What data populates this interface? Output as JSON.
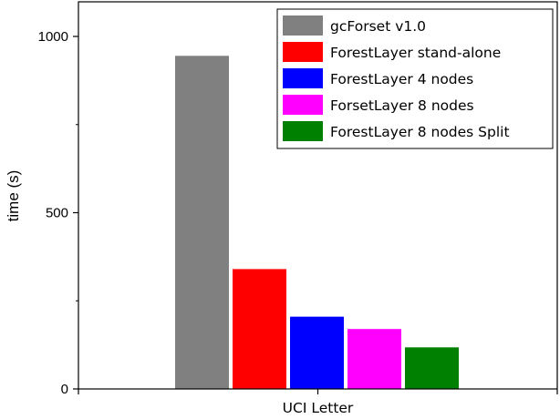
{
  "chart_data": {
    "type": "bar",
    "categories": [
      "UCI Letter"
    ],
    "series": [
      {
        "name": "gcForset v1.0",
        "color": "#808080",
        "values": [
          945
        ]
      },
      {
        "name": "ForestLayer stand-alone",
        "color": "#ff0000",
        "values": [
          340
        ]
      },
      {
        "name": "ForestLayer 4 nodes",
        "color": "#0000ff",
        "values": [
          205
        ]
      },
      {
        "name": "ForsetLayer 8 nodes",
        "color": "#ff00ff",
        "values": [
          170
        ]
      },
      {
        "name": "ForestLayer 8 nodes Split",
        "color": "#008000",
        "values": [
          118
        ]
      }
    ],
    "xlabel": "",
    "ylabel": "time (s)",
    "ylim": [
      0,
      1100
    ],
    "yticks": [
      0,
      500,
      1000
    ],
    "ytick_labels": [
      "0",
      "500",
      "1000"
    ],
    "grid": false,
    "legend_position": "top-right"
  }
}
